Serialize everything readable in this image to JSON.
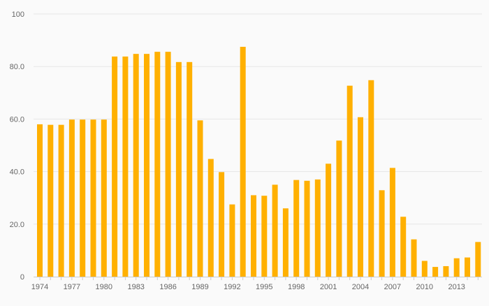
{
  "chart_data": {
    "type": "bar",
    "title": "",
    "xlabel": "",
    "ylabel": "",
    "ylim": [
      0,
      100
    ],
    "yticks": [
      {
        "value": 0,
        "label": "0"
      },
      {
        "value": 20,
        "label": "20.0"
      },
      {
        "value": 40,
        "label": "40.0"
      },
      {
        "value": 60,
        "label": "60.0"
      },
      {
        "value": 80,
        "label": "80.0"
      },
      {
        "value": 100,
        "label": "100"
      }
    ],
    "xtick_labels": [
      "1974",
      "1977",
      "1980",
      "1983",
      "1986",
      "1989",
      "1992",
      "1995",
      "1998",
      "2001",
      "2004",
      "2007",
      "2010",
      "2013"
    ],
    "grid": "horizontal",
    "colors": {
      "bar": "#FFB000",
      "grid": "#e6e6e6",
      "axis": "#cccccc"
    },
    "categories": [
      "1974",
      "1975",
      "1976",
      "1977",
      "1978",
      "1979",
      "1980",
      "1981",
      "1982",
      "1983",
      "1984",
      "1985",
      "1986",
      "1987",
      "1988",
      "1989",
      "1990",
      "1991",
      "1992",
      "1993",
      "1994",
      "1995",
      "1996",
      "1997",
      "1998",
      "1999",
      "2000",
      "2001",
      "2002",
      "2003",
      "2004",
      "2005",
      "2006",
      "2007",
      "2008",
      "2009",
      "2010",
      "2011",
      "2012",
      "2013",
      "2014",
      "2015"
    ],
    "values": [
      58,
      57.8,
      57.8,
      59.8,
      59.8,
      59.8,
      59.8,
      83.8,
      83.8,
      84.8,
      84.8,
      85.6,
      85.6,
      81.7,
      81.7,
      59.5,
      44.8,
      39.8,
      27.5,
      87.5,
      31,
      30.8,
      35,
      26,
      36.8,
      36.5,
      37,
      43,
      51.8,
      72.7,
      60.7,
      74.8,
      32.9,
      41.4,
      22.8,
      14.2,
      6,
      3.7,
      4,
      7,
      7.3,
      13.2
    ]
  }
}
